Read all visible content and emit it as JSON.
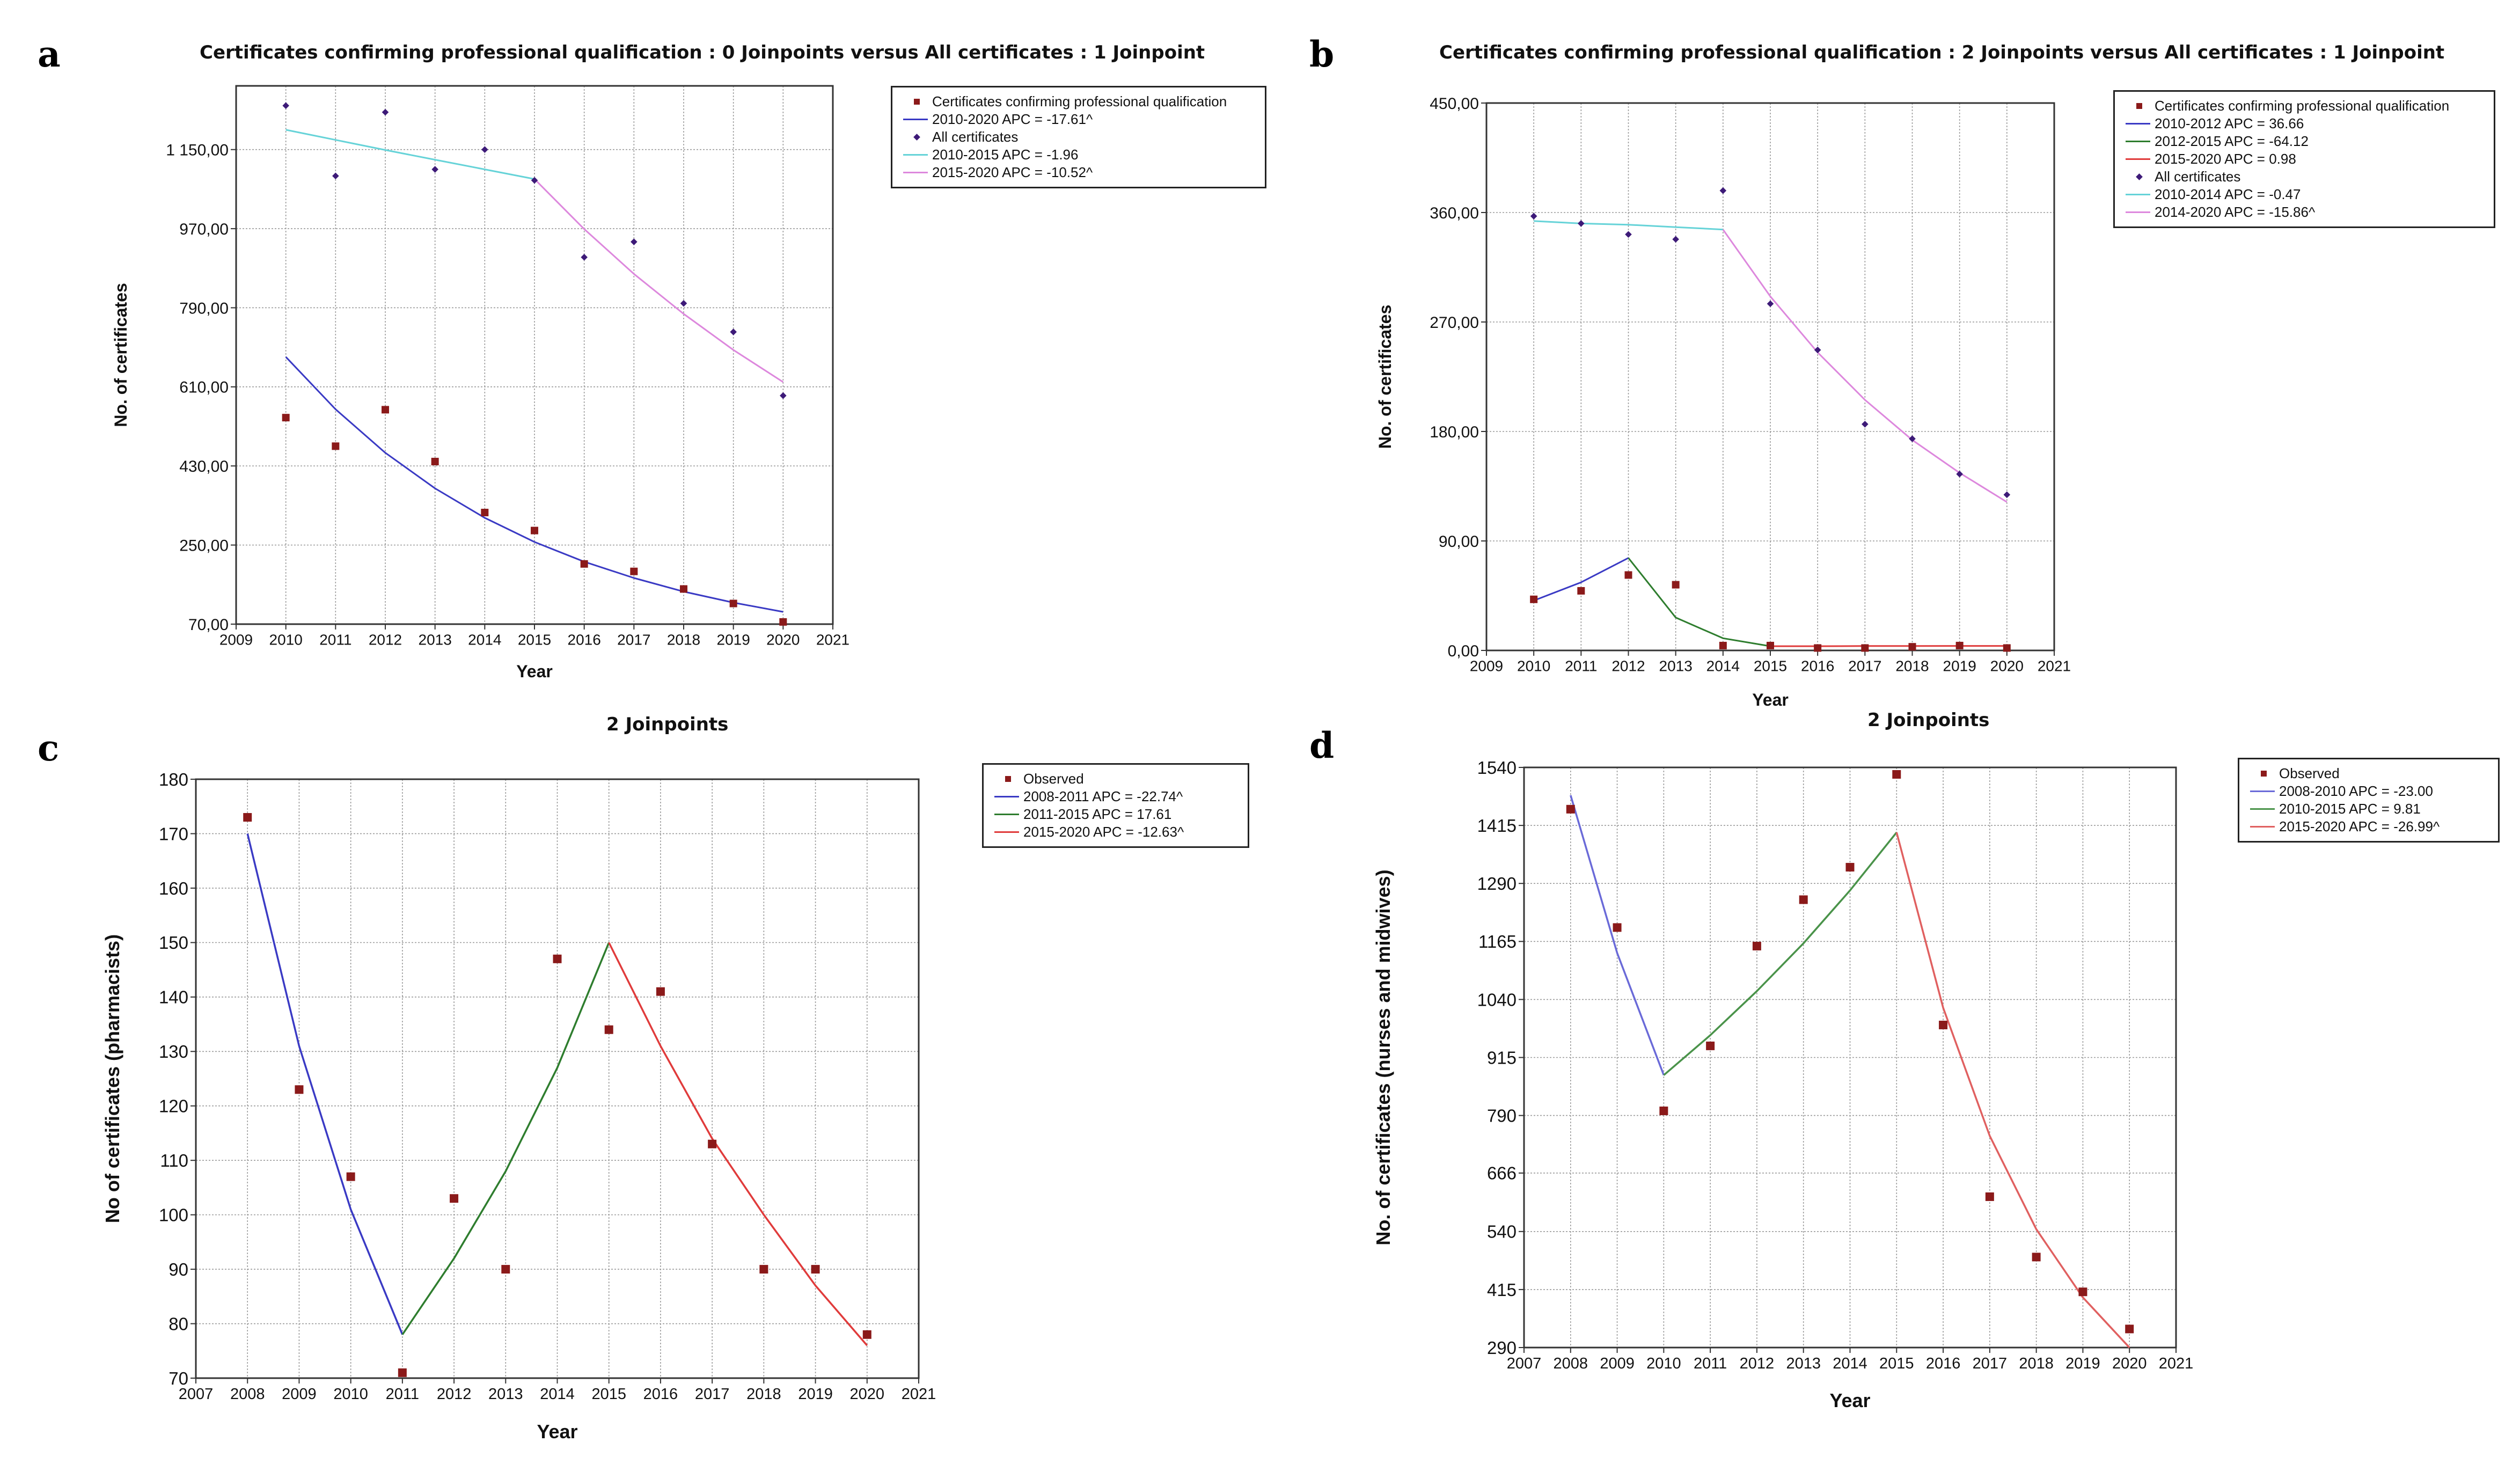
{
  "figure": {
    "panel_letters": [
      "a",
      "b",
      "c",
      "d"
    ]
  },
  "chart_data": [
    {
      "panel": "a",
      "type": "scatter",
      "title": "Certificates confirming professional qualification : 0 Joinpoints  versus  All certificates : 1 Joinpoint",
      "xlabel": "Year",
      "ylabel": "No. of certificates",
      "xlim": [
        2009,
        2021
      ],
      "ylim": [
        70,
        1295
      ],
      "yticks": [
        70,
        250,
        430,
        610,
        790,
        970,
        1150
      ],
      "ytick_labels": [
        "70,00",
        "250,00",
        "430,00",
        "610,00",
        "790,00",
        "970,00",
        "1 150,00"
      ],
      "xticks": [
        2009,
        2010,
        2011,
        2012,
        2013,
        2014,
        2015,
        2016,
        2017,
        2018,
        2019,
        2020,
        2021
      ],
      "grid": true,
      "legend": [
        {
          "label": "Certificates confirming professional qualification",
          "kind": "square",
          "color": "#8b1a1a"
        },
        {
          "label": "2010-2020 APC  = -17.61^",
          "kind": "line",
          "color": "#3a3ac4"
        },
        {
          "label": "All certificates",
          "kind": "diamond",
          "color": "#3d1a78"
        },
        {
          "label": "2010-2015 APC  = -1.96",
          "kind": "line",
          "color": "#66d3d8"
        },
        {
          "label": "2015-2020 APC  = -10.52^",
          "kind": "line",
          "color": "#dd88dd"
        }
      ],
      "series": [
        {
          "name": "Certificates confirming professional qualification",
          "kind": "points",
          "marker": "square",
          "color": "#8b1a1a",
          "x": [
            2010,
            2011,
            2012,
            2013,
            2014,
            2015,
            2016,
            2017,
            2018,
            2019,
            2020
          ],
          "y": [
            540,
            475,
            558,
            440,
            324,
            283,
            207,
            190,
            150,
            117,
            75
          ]
        },
        {
          "name": "2010-2020 fit",
          "kind": "line",
          "color": "#3a3ac4",
          "x": [
            2010,
            2011,
            2012,
            2013,
            2014,
            2015,
            2016,
            2017,
            2018,
            2019,
            2020
          ],
          "y": [
            678,
            559,
            460,
            379,
            312,
            257,
            212,
            175,
            144,
            119,
            98
          ]
        },
        {
          "name": "All certificates",
          "kind": "points",
          "marker": "diamond",
          "color": "#3d1a78",
          "x": [
            2010,
            2011,
            2012,
            2013,
            2014,
            2015,
            2016,
            2017,
            2018,
            2019,
            2020
          ],
          "y": [
            1250,
            1090,
            1235,
            1105,
            1150,
            1080,
            905,
            940,
            800,
            735,
            590
          ]
        },
        {
          "name": "2010-2015 fit",
          "kind": "line",
          "color": "#66d3d8",
          "x": [
            2010,
            2011,
            2012,
            2013,
            2014,
            2015
          ],
          "y": [
            1195,
            1172,
            1149,
            1127,
            1105,
            1083
          ]
        },
        {
          "name": "2015-2020 fit",
          "kind": "line",
          "color": "#dd88dd",
          "x": [
            2015,
            2016,
            2017,
            2018,
            2019,
            2020
          ],
          "y": [
            1083,
            969,
            867,
            776,
            694,
            621
          ]
        }
      ]
    },
    {
      "panel": "b",
      "type": "scatter",
      "title": "Certificates confirming professional qualification : 2 Joinpoints  versus  All certificates : 1 Joinpoint",
      "xlabel": "Year",
      "ylabel": "No.  of certificates",
      "xlim": [
        2009,
        2021
      ],
      "ylim": [
        0,
        450
      ],
      "yticks": [
        0,
        90,
        180,
        270,
        360,
        450
      ],
      "ytick_labels": [
        "0,00",
        "90,00",
        "180,00",
        "270,00",
        "360,00",
        "450,00"
      ],
      "xticks": [
        2009,
        2010,
        2011,
        2012,
        2013,
        2014,
        2015,
        2016,
        2017,
        2018,
        2019,
        2020,
        2021
      ],
      "grid": true,
      "legend": [
        {
          "label": "Certificates confirming professional qualification",
          "kind": "square",
          "color": "#8b1a1a"
        },
        {
          "label": "2010-2012 APC  =  36.66",
          "kind": "line",
          "color": "#3a3ac4"
        },
        {
          "label": "2012-2015 APC  = -64.12",
          "kind": "line",
          "color": "#2e7d2e"
        },
        {
          "label": "2015-2020 APC  =  0.98",
          "kind": "line",
          "color": "#e03b3b"
        },
        {
          "label": "All certificates",
          "kind": "diamond",
          "color": "#3d1a78"
        },
        {
          "label": "2010-2014 APC  = -0.47",
          "kind": "line",
          "color": "#66d3d8"
        },
        {
          "label": "2014-2020 APC  = -15.86^",
          "kind": "line",
          "color": "#dd88dd"
        }
      ],
      "series": [
        {
          "name": "Certificates confirming professional qualification",
          "kind": "points",
          "marker": "square",
          "color": "#8b1a1a",
          "x": [
            2010,
            2011,
            2012,
            2013,
            2014,
            2015,
            2016,
            2017,
            2018,
            2019,
            2020
          ],
          "y": [
            42,
            49,
            62,
            54,
            4,
            4,
            2,
            2,
            3,
            4,
            2
          ]
        },
        {
          "name": "2010-2012 fit",
          "kind": "line",
          "color": "#3a3ac4",
          "x": [
            2010,
            2011,
            2012
          ],
          "y": [
            41,
            56,
            76
          ]
        },
        {
          "name": "2012-2015 fit",
          "kind": "line",
          "color": "#2e7d2e",
          "x": [
            2012,
            2013,
            2014,
            2015
          ],
          "y": [
            76,
            27,
            10,
            3.5
          ]
        },
        {
          "name": "2015-2020 fit",
          "kind": "line",
          "color": "#e03b3b",
          "x": [
            2015,
            2016,
            2017,
            2018,
            2019,
            2020
          ],
          "y": [
            3.5,
            3.5,
            3.6,
            3.6,
            3.7,
            3.7
          ]
        },
        {
          "name": "All certificates",
          "kind": "points",
          "marker": "diamond",
          "color": "#3d1a78",
          "x": [
            2010,
            2011,
            2012,
            2013,
            2014,
            2015,
            2016,
            2017,
            2018,
            2019,
            2020
          ],
          "y": [
            357,
            351,
            342,
            338,
            378,
            285,
            247,
            186,
            174,
            145,
            128
          ]
        },
        {
          "name": "2010-2014 fit",
          "kind": "line",
          "color": "#66d3d8",
          "x": [
            2010,
            2011,
            2012,
            2013,
            2014
          ],
          "y": [
            353,
            351,
            350,
            348,
            346
          ]
        },
        {
          "name": "2014-2020 fit",
          "kind": "line",
          "color": "#dd88dd",
          "x": [
            2014,
            2015,
            2016,
            2017,
            2018,
            2019,
            2020
          ],
          "y": [
            346,
            291,
            245,
            206,
            173,
            146,
            122
          ]
        }
      ]
    },
    {
      "panel": "c",
      "type": "scatter",
      "title": "2 Joinpoints",
      "xlabel": "Year",
      "ylabel": "No of certificates (pharmacists)",
      "xlim": [
        2007,
        2021
      ],
      "ylim": [
        70,
        180
      ],
      "yticks": [
        70,
        80,
        90,
        100,
        110,
        120,
        130,
        140,
        150,
        160,
        170,
        180
      ],
      "ytick_labels": [
        "70",
        "80",
        "90",
        "100",
        "110",
        "120",
        "130",
        "140",
        "150",
        "160",
        "170",
        "180"
      ],
      "xticks": [
        2007,
        2008,
        2009,
        2010,
        2011,
        2012,
        2013,
        2014,
        2015,
        2016,
        2017,
        2018,
        2019,
        2020,
        2021
      ],
      "grid": true,
      "legend": [
        {
          "label": "Observed",
          "kind": "square",
          "color": "#8b1a1a"
        },
        {
          "label": "2008-2011 APC  = -22.74^",
          "kind": "line",
          "color": "#3a3ac4"
        },
        {
          "label": "2011-2015 APC  =  17.61",
          "kind": "line",
          "color": "#2e7d2e"
        },
        {
          "label": "2015-2020 APC  = -12.63^",
          "kind": "line",
          "color": "#e03b3b"
        }
      ],
      "series": [
        {
          "name": "Observed",
          "kind": "points",
          "marker": "square",
          "color": "#8b1a1a",
          "x": [
            2008,
            2009,
            2010,
            2011,
            2012,
            2013,
            2014,
            2015,
            2016,
            2017,
            2018,
            2019,
            2020
          ],
          "y": [
            173,
            123,
            107,
            71,
            103,
            90,
            147,
            134,
            141,
            113,
            90,
            90,
            78
          ]
        },
        {
          "name": "2008-2011 fit",
          "kind": "line",
          "color": "#3a3ac4",
          "x": [
            2008,
            2009,
            2010,
            2011
          ],
          "y": [
            170,
            131,
            101,
            78
          ]
        },
        {
          "name": "2011-2015 fit",
          "kind": "line",
          "color": "#2e7d2e",
          "x": [
            2011,
            2012,
            2013,
            2014,
            2015
          ],
          "y": [
            78,
            92,
            108,
            127,
            150
          ]
        },
        {
          "name": "2015-2020 fit",
          "kind": "line",
          "color": "#e03b3b",
          "x": [
            2015,
            2016,
            2017,
            2018,
            2019,
            2020
          ],
          "y": [
            150,
            131,
            114,
            100,
            87,
            76
          ]
        }
      ]
    },
    {
      "panel": "d",
      "type": "scatter",
      "title": "2 Joinpoints",
      "xlabel": "Year",
      "ylabel": "No. of certificates (nurses and midwives)",
      "xlim": [
        2007,
        2021
      ],
      "ylim": [
        290,
        1540
      ],
      "yticks": [
        290,
        415,
        540,
        666,
        790,
        915,
        1040,
        1165,
        1290,
        1415,
        1540
      ],
      "ytick_labels": [
        "290",
        "415",
        "540",
        "666",
        "790",
        "915",
        "1040",
        "1165",
        "1290",
        "1415",
        "1540"
      ],
      "xticks": [
        2007,
        2008,
        2009,
        2010,
        2011,
        2012,
        2013,
        2014,
        2015,
        2016,
        2017,
        2018,
        2019,
        2020,
        2021
      ],
      "grid": true,
      "legend": [
        {
          "label": "Observed",
          "kind": "square",
          "color": "#8b1a1a"
        },
        {
          "label": "2008-2010 APC  = -23.00",
          "kind": "line",
          "color": "#6a6ad8"
        },
        {
          "label": "2010-2015 APC  =  9.81",
          "kind": "line",
          "color": "#4a934a"
        },
        {
          "label": "2015-2020 APC  = -26.99^",
          "kind": "line",
          "color": "#e06060"
        }
      ],
      "series": [
        {
          "name": "Observed",
          "kind": "points",
          "marker": "square",
          "color": "#8b1a1a",
          "x": [
            2008,
            2009,
            2010,
            2011,
            2012,
            2013,
            2014,
            2015,
            2016,
            2017,
            2018,
            2019,
            2020
          ],
          "y": [
            1450,
            1195,
            800,
            940,
            1155,
            1255,
            1325,
            1525,
            985,
            615,
            485,
            410,
            330
          ]
        },
        {
          "name": "2008-2010 fit",
          "kind": "line",
          "color": "#6a6ad8",
          "x": [
            2008,
            2009,
            2010
          ],
          "y": [
            1480,
            1140,
            877
          ]
        },
        {
          "name": "2010-2015 fit",
          "kind": "line",
          "color": "#4a934a",
          "x": [
            2010,
            2011,
            2012,
            2013,
            2014,
            2015
          ],
          "y": [
            877,
            963,
            1058,
            1161,
            1275,
            1400
          ]
        },
        {
          "name": "2015-2020 fit",
          "kind": "line",
          "color": "#e06060",
          "x": [
            2015,
            2016,
            2017,
            2018,
            2019,
            2020
          ],
          "y": [
            1400,
            1022,
            746,
            545,
            398,
            290
          ]
        }
      ]
    }
  ]
}
